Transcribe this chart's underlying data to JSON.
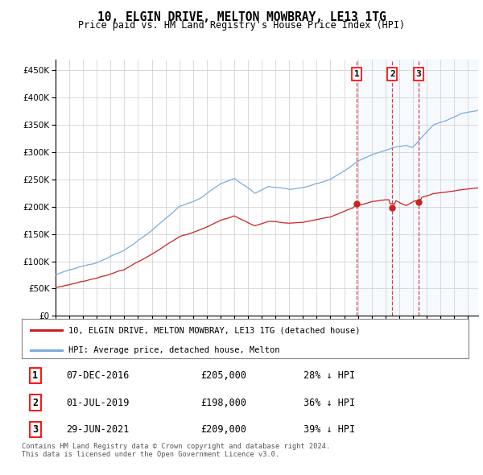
{
  "title": "10, ELGIN DRIVE, MELTON MOWBRAY, LE13 1TG",
  "subtitle": "Price paid vs. HM Land Registry's House Price Index (HPI)",
  "legend_line1": "10, ELGIN DRIVE, MELTON MOWBRAY, LE13 1TG (detached house)",
  "legend_line2": "HPI: Average price, detached house, Melton",
  "footer_line1": "Contains HM Land Registry data © Crown copyright and database right 2024.",
  "footer_line2": "This data is licensed under the Open Government Licence v3.0.",
  "transactions": [
    {
      "label": "1",
      "date_str": "07-DEC-2016",
      "price_str": "£205,000",
      "hpi_pct": "28% ↓ HPI",
      "sale_year": 2016,
      "sale_month": 12,
      "sale_price": 205000
    },
    {
      "label": "2",
      "date_str": "01-JUL-2019",
      "price_str": "£198,000",
      "hpi_pct": "36% ↓ HPI",
      "sale_year": 2019,
      "sale_month": 7,
      "sale_price": 198000
    },
    {
      "label": "3",
      "date_str": "29-JUN-2021",
      "price_str": "£209,000",
      "hpi_pct": "39% ↓ HPI",
      "sale_year": 2021,
      "sale_month": 6,
      "sale_price": 209000
    }
  ],
  "hpi_color": "#7aacdc",
  "property_color": "#cc2222",
  "vline_color": "#cc2222",
  "shade_color": "#ddeeff",
  "grid_color": "#cccccc",
  "background_color": "#ffffff",
  "ylim": [
    0,
    470000
  ],
  "yticks": [
    0,
    50000,
    100000,
    150000,
    200000,
    250000,
    300000,
    350000,
    400000,
    450000
  ],
  "x_start_year": 1995.0,
  "x_end_year": 2025.75
}
